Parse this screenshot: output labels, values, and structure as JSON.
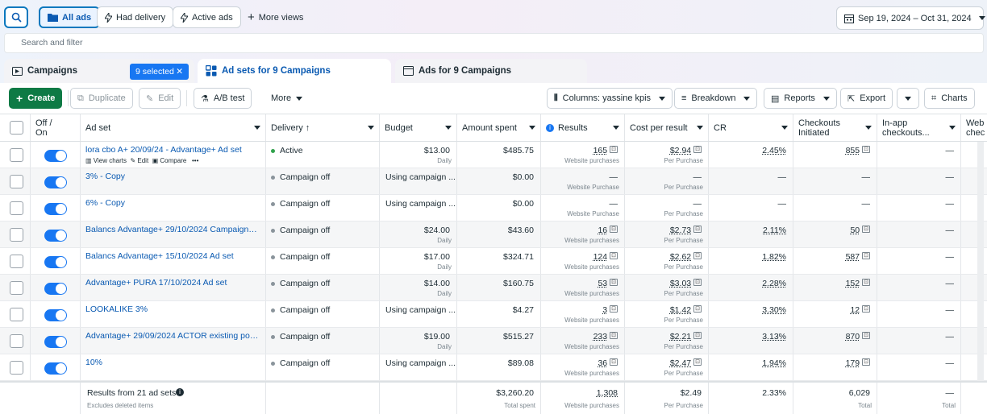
{
  "filters": {
    "all_ads": "All ads",
    "had_delivery": "Had delivery",
    "active_ads": "Active ads",
    "more_views": "More views",
    "date_range": "Sep 19, 2024 – Oct 31, 2024",
    "search_placeholder": "Search and filter"
  },
  "tabs": {
    "campaigns": "Campaigns",
    "selected": "9 selected",
    "adsets": "Ad sets for 9 Campaigns",
    "ads": "Ads for 9 Campaigns"
  },
  "toolbar": {
    "create": "Create",
    "duplicate": "Duplicate",
    "edit": "Edit",
    "ab_test": "A/B test",
    "more": "More",
    "columns": "Columns: yassine kpis",
    "breakdown": "Breakdown",
    "reports": "Reports",
    "export": "Export",
    "charts": "Charts"
  },
  "columns": {
    "off_on": "Off / On",
    "ad_set": "Ad set",
    "delivery": "Delivery ↑",
    "budget": "Budget",
    "amount_spent": "Amount spent",
    "results": "Results",
    "cost_per_result": "Cost per result",
    "cr": "CR",
    "checkouts": "Checkouts Initiated",
    "inapp": "In-app checkouts...",
    "web": "Web chec"
  },
  "row_actions": {
    "view_charts": "View charts",
    "edit": "Edit",
    "compare": "Compare",
    "more": "•••"
  },
  "rows": [
    {
      "name": "lora cbo A+ 20/09/24 - Advantage+ Ad set",
      "delivery": "Active",
      "active": true,
      "budget": "$13.00",
      "budget_sub": "Daily",
      "spent": "$485.75",
      "results": "165",
      "results_sub": "Website purchases",
      "cpr": "$2.94",
      "cpr_sub": "Per Purchase",
      "cr": "2.45%",
      "checkouts": "855",
      "inapp": "—"
    },
    {
      "name": "3% - Copy",
      "delivery": "Campaign off",
      "active": false,
      "budget": "Using campaign ...",
      "budget_sub": "",
      "spent": "$0.00",
      "results": "—",
      "results_sub": "Website Purchase",
      "cpr": "—",
      "cpr_sub": "Per Purchase",
      "cr": "—",
      "checkouts": "—",
      "inapp": "—"
    },
    {
      "name": "6% - Copy",
      "delivery": "Campaign off",
      "active": false,
      "budget": "Using campaign ...",
      "budget_sub": "",
      "spent": "$0.00",
      "results": "—",
      "results_sub": "Website Purchase",
      "cpr": "—",
      "cpr_sub": "Per Purchase",
      "cr": "—",
      "checkouts": "—",
      "inapp": "—"
    },
    {
      "name": "Balancs Advantage+ 29/10/2024 Campaign Ad...",
      "delivery": "Campaign off",
      "active": false,
      "budget": "$24.00",
      "budget_sub": "Daily",
      "spent": "$43.60",
      "results": "16",
      "results_sub": "Website purchases",
      "cpr": "$2.73",
      "cpr_sub": "Per Purchase",
      "cr": "2.11%",
      "checkouts": "50",
      "inapp": "—"
    },
    {
      "name": "Balancs Advantage+ 15/10/2024 Ad set",
      "delivery": "Campaign off",
      "active": false,
      "budget": "$17.00",
      "budget_sub": "Daily",
      "spent": "$324.71",
      "results": "124",
      "results_sub": "Website purchases",
      "cpr": "$2.62",
      "cpr_sub": "Per Purchase",
      "cr": "1.82%",
      "checkouts": "587",
      "inapp": "—"
    },
    {
      "name": "Advantage+ PURA 17/10/2024 Ad set",
      "delivery": "Campaign off",
      "active": false,
      "budget": "$14.00",
      "budget_sub": "Daily",
      "spent": "$160.75",
      "results": "53",
      "results_sub": "Website purchases",
      "cpr": "$3.03",
      "cpr_sub": "Per Purchase",
      "cr": "2.28%",
      "checkouts": "152",
      "inapp": "—"
    },
    {
      "name": "LOOKALIKE 3%",
      "delivery": "Campaign off",
      "active": false,
      "budget": "Using campaign ...",
      "budget_sub": "",
      "spent": "$4.27",
      "results": "3",
      "results_sub": "Website purchases",
      "cpr": "$1.42",
      "cpr_sub": "Per Purchase",
      "cr": "3.30%",
      "checkouts": "12",
      "inapp": "—"
    },
    {
      "name": "Advantage+ 29/09/2024 ACTOR existing post ...",
      "delivery": "Campaign off",
      "active": false,
      "budget": "$19.00",
      "budget_sub": "Daily",
      "spent": "$515.27",
      "results": "233",
      "results_sub": "Website purchases",
      "cpr": "$2.21",
      "cpr_sub": "Per Purchase",
      "cr": "3.13%",
      "checkouts": "870",
      "inapp": "—"
    },
    {
      "name": "10%",
      "delivery": "Campaign off",
      "active": false,
      "budget": "Using campaign ...",
      "budget_sub": "",
      "spent": "$89.08",
      "results": "36",
      "results_sub": "Website purchases",
      "cpr": "$2.47",
      "cpr_sub": "Per Purchase",
      "cr": "1.94%",
      "checkouts": "179",
      "inapp": "—"
    }
  ],
  "footer": {
    "label": "Results from 21 ad sets",
    "note": "Excludes deleted items",
    "spent": "$3,260.20",
    "spent_sub": "Total spent",
    "results": "1,308",
    "results_sub": "Website purchases",
    "cpr": "$2.49",
    "cpr_sub": "Per Purchase",
    "cr": "2.33%",
    "checkouts": "6,029",
    "checkouts_sub": "Total",
    "inapp": "—",
    "inapp_sub": "Total"
  }
}
